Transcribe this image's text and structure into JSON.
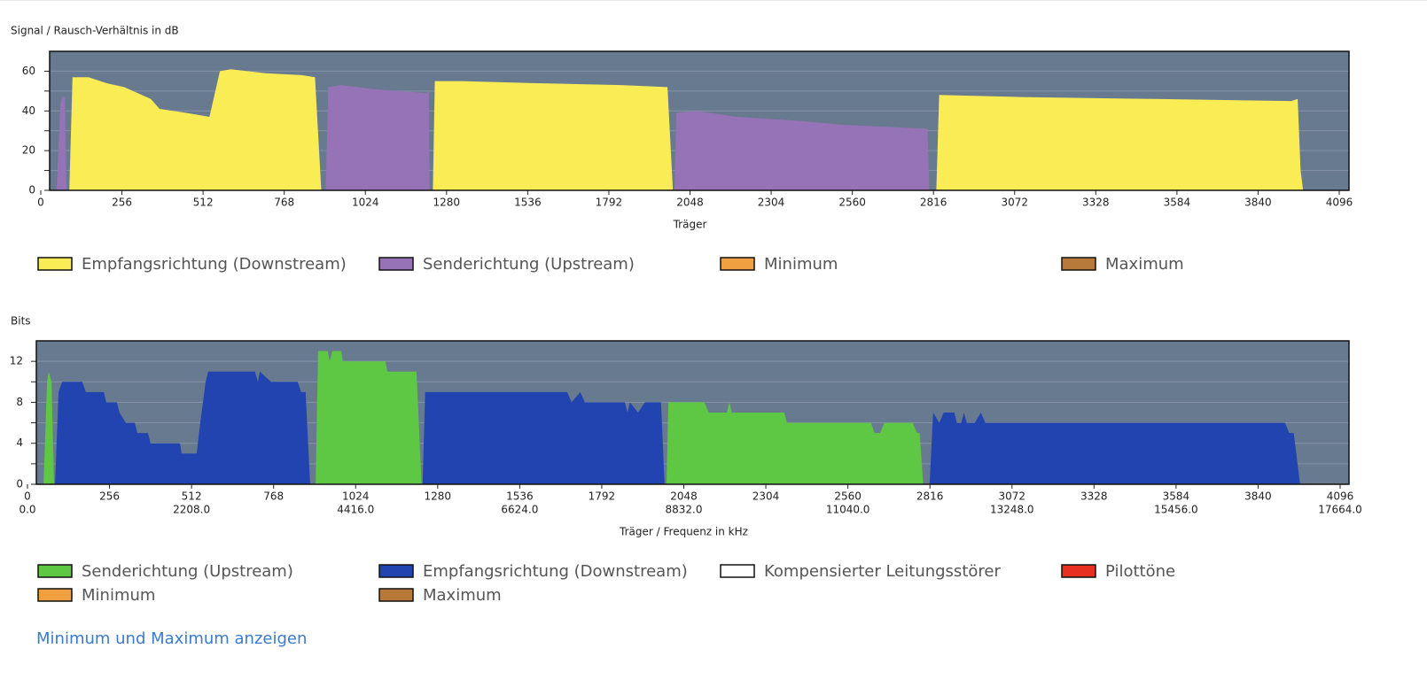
{
  "chart_data": [
    {
      "type": "area",
      "title": "Signal / Rausch-Verhältnis in dB",
      "xlabel": "Träger",
      "xlim": [
        0,
        4096
      ],
      "xticks": [
        0,
        256,
        512,
        768,
        1024,
        1280,
        1536,
        1792,
        2048,
        2304,
        2560,
        2816,
        3072,
        3328,
        3584,
        3840,
        4096
      ],
      "ylim": [
        0,
        70
      ],
      "yticks": [
        0,
        20,
        40,
        60
      ],
      "yminorticks": [
        10,
        30,
        50
      ],
      "grid": true,
      "series": [
        {
          "name": "Empfangsrichtung (Downstream)",
          "color": "#f9ec55",
          "x": [
            90,
            100,
            151,
            207,
            263,
            347,
            375,
            459,
            532,
            565,
            599,
            711,
            823,
            865,
            885,
            null,
            1237,
            1243,
            1327,
            1551,
            1831,
            1977,
            1994,
            null,
            2825,
            2834,
            3091,
            3511,
            3945,
            3965,
            3974,
            3982
          ],
          "values": [
            0,
            57,
            57,
            54,
            52,
            46,
            41,
            39,
            37,
            60,
            61,
            59,
            58,
            57,
            0,
            null,
            0,
            55,
            55,
            54,
            53,
            52,
            0,
            null,
            0,
            48,
            47,
            46,
            45,
            46,
            10,
            0
          ]
        },
        {
          "name": "Senderichtung (Upstream)",
          "color": "#9673b6",
          "x": [
            50,
            62,
            67,
            76,
            81,
            null,
            899,
            907,
            949,
            1047,
            1215,
            1224,
            1226,
            null,
            1999,
            2005,
            2069,
            2195,
            2391,
            2531,
            2671,
            2797,
            2803
          ],
          "values": [
            0,
            43,
            47,
            47,
            0,
            null,
            0,
            52,
            53,
            51,
            49,
            50,
            0,
            null,
            0,
            39,
            40,
            37,
            35,
            33,
            32,
            31,
            0
          ]
        },
        {
          "name": "Minimum",
          "color": "#f0a040",
          "x": [],
          "values": []
        },
        {
          "name": "Maximum",
          "color": "#b87a3a",
          "x": [],
          "values": []
        }
      ]
    },
    {
      "type": "area",
      "title": "Bits",
      "xlabel": "Träger / Frequenz in kHz",
      "xlim": [
        0,
        4096
      ],
      "xticks": [
        0,
        256,
        512,
        768,
        1024,
        1280,
        1536,
        1792,
        2048,
        2304,
        2560,
        2816,
        3072,
        3328,
        3584,
        3840,
        4096
      ],
      "x2lim": [
        0,
        17664
      ],
      "x2ticks": [
        {
          "value": 0,
          "label": "0.0"
        },
        {
          "value": 2208,
          "label": "2208.0"
        },
        {
          "value": 4416,
          "label": "4416.0"
        },
        {
          "value": 6624,
          "label": "6624.0"
        },
        {
          "value": 8832,
          "label": "8832.0"
        },
        {
          "value": 11040,
          "label": "11040.0"
        },
        {
          "value": 13248,
          "label": "13248.0"
        },
        {
          "value": 15456,
          "label": "15456.0"
        },
        {
          "value": 17664,
          "label": "17664.0"
        }
      ],
      "ylim": [
        0,
        14
      ],
      "yticks": [
        0,
        4,
        8,
        12
      ],
      "yminorticks": [
        2,
        6,
        10
      ],
      "grid": true,
      "series": [
        {
          "name": "Senderichtung (Upstream)",
          "color": "#5ec744",
          "x": [
            50,
            61,
            66,
            75,
            83,
            null,
            899,
            907,
            937,
            943,
            951,
            979,
            984,
            1117,
            1123,
            1214,
            1230,
            null,
            1994,
            2000,
            2112,
            2126,
            2182,
            2190,
            2198,
            2361,
            2370,
            2632,
            2643,
            2660,
            2674,
            2762,
            2776,
            2784,
            2795
          ],
          "values": [
            0,
            10,
            11,
            10,
            0,
            null,
            0,
            13,
            13,
            12,
            13,
            13,
            12,
            12,
            11,
            11,
            0,
            null,
            0,
            8,
            8,
            7,
            7,
            8,
            7,
            7,
            6,
            6,
            5,
            5,
            6,
            6,
            5,
            5,
            0
          ]
        },
        {
          "name": "Empfangsrichtung (Downstream)",
          "color": "#2244b0",
          "x": [
            86,
            97,
            108,
            171,
            182,
            238,
            246,
            279,
            287,
            307,
            335,
            343,
            376,
            384,
            476,
            481,
            528,
            539,
            556,
            564,
            710,
            719,
            725,
            760,
            843,
            854,
            868,
            882,
            null,
            1233,
            1241,
            1684,
            1698,
            1725,
            1739,
            1864,
            1872,
            1880,
            1905,
            1927,
            1977,
            1988,
            null,
            2815,
            2826,
            2845,
            2859,
            2892,
            2900,
            2914,
            2922,
            2931,
            2956,
            2975,
            2989,
            3924,
            3937,
            3951,
            3971
          ],
          "values": [
            0,
            9,
            10,
            10,
            9,
            9,
            8,
            8,
            7,
            6,
            6,
            5,
            5,
            4,
            4,
            3,
            3,
            6,
            10,
            11,
            11,
            10,
            11,
            10,
            10,
            9,
            9,
            0,
            null,
            0,
            9,
            9,
            8,
            9,
            8,
            8,
            7,
            8,
            7,
            8,
            8,
            0,
            null,
            0,
            7,
            6,
            7,
            7,
            6,
            6,
            7,
            6,
            6,
            7,
            6,
            6,
            5,
            5,
            0
          ]
        },
        {
          "name": "Kompensierter Leitungsstörer",
          "color": "#ffffff",
          "x": [],
          "values": []
        },
        {
          "name": "Pilottöne",
          "color": "#e83020",
          "x": [],
          "values": []
        },
        {
          "name": "Minimum",
          "color": "#f0a040",
          "x": [],
          "values": []
        },
        {
          "name": "Maximum",
          "color": "#b87a3a",
          "x": [],
          "values": []
        }
      ]
    }
  ],
  "link": "Minimum und Maximum anzeigen"
}
